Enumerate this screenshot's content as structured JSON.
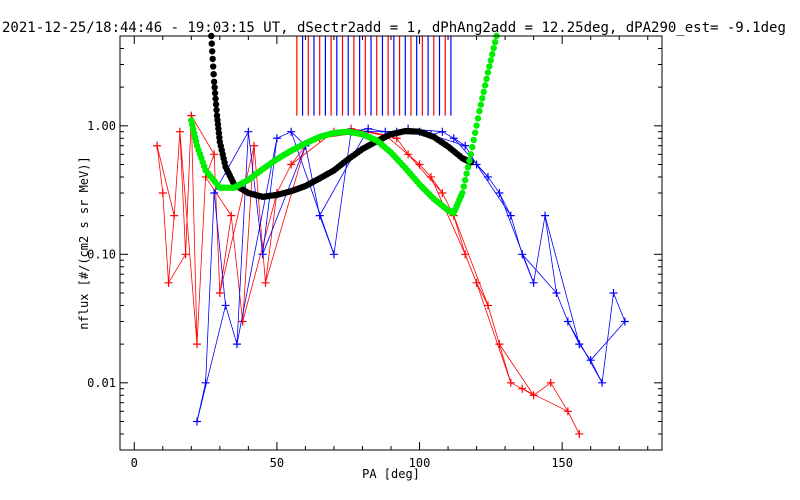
{
  "chart_data": {
    "type": "scatter",
    "title": "2021-12-25/18:44:46 - 19:03:15 UT, dSectr2add = 1, dPhAng2add = 12.25deg, dPA290_est=  -9.1deg",
    "xlabel": "PA [deg]",
    "ylabel": "nflux [#/(cm2 s sr MeV)]",
    "xlim": [
      -5,
      185
    ],
    "ylim": [
      0.003,
      5.0
    ],
    "yscale": "log",
    "x_ticks": [
      "0",
      "50",
      "100",
      "150"
    ],
    "x_tick_values": [
      0,
      50,
      100,
      150
    ],
    "y_ticks": [
      "0.01",
      "0.10",
      "1.00"
    ],
    "y_tick_values": [
      0.01,
      0.1,
      1.0
    ],
    "grid": false,
    "colors": {
      "red_series": "#ff0000",
      "blue_series": "#0000ff",
      "black_curve": "#000000",
      "green_curve": "#00ee00"
    },
    "series": [
      {
        "color": "red",
        "marker": "+",
        "x": [
          8,
          10,
          12,
          14,
          16,
          18,
          20,
          22,
          25,
          28,
          30,
          34,
          38,
          42,
          46,
          50,
          55,
          60,
          65,
          70,
          76,
          82,
          88,
          92,
          96,
          100,
          104,
          108,
          112,
          116,
          120,
          124,
          128,
          132,
          136,
          140,
          146,
          152,
          156
        ],
        "y": [
          0.7,
          0.3,
          0.06,
          0.2,
          0.9,
          0.1,
          1.2,
          0.02,
          0.4,
          0.6,
          0.05,
          0.2,
          0.03,
          0.7,
          0.06,
          0.3,
          0.5,
          0.7,
          0.8,
          0.9,
          0.95,
          0.9,
          0.85,
          0.8,
          0.6,
          0.5,
          0.4,
          0.3,
          0.2,
          0.1,
          0.06,
          0.04,
          0.02,
          0.01,
          0.009,
          0.008,
          0.01,
          0.006,
          0.004
        ]
      },
      {
        "color": "blue",
        "marker": "+",
        "x": [
          22,
          25,
          28,
          32,
          36,
          40,
          45,
          50,
          55,
          60,
          65,
          70,
          76,
          82,
          88,
          92,
          96,
          100,
          104,
          108,
          112,
          116,
          120,
          124,
          128,
          132,
          136,
          140,
          144,
          148,
          152,
          156,
          160,
          164,
          168,
          172
        ],
        "y": [
          0.005,
          0.01,
          0.3,
          0.04,
          0.02,
          0.9,
          0.1,
          0.8,
          0.9,
          0.7,
          0.2,
          0.1,
          0.9,
          0.95,
          0.9,
          0.9,
          0.95,
          0.9,
          0.85,
          0.9,
          0.8,
          0.7,
          0.5,
          0.4,
          0.3,
          0.2,
          0.1,
          0.06,
          0.2,
          0.05,
          0.03,
          0.02,
          0.015,
          0.01,
          0.05,
          0.03
        ]
      },
      {
        "color": "black",
        "marker": "dot",
        "x": [
          27,
          28,
          29,
          30,
          32,
          35,
          40,
          45,
          50,
          55,
          60,
          65,
          70,
          75,
          80,
          85,
          90,
          95,
          100,
          105,
          110,
          115,
          118
        ],
        "y": [
          5.0,
          2.2,
          1.2,
          0.75,
          0.48,
          0.35,
          0.3,
          0.28,
          0.29,
          0.31,
          0.34,
          0.39,
          0.45,
          0.55,
          0.66,
          0.76,
          0.86,
          0.91,
          0.9,
          0.82,
          0.69,
          0.56,
          0.52
        ]
      },
      {
        "color": "green",
        "marker": "dot",
        "x": [
          20,
          22,
          25,
          30,
          35,
          40,
          45,
          50,
          55,
          60,
          65,
          70,
          75,
          80,
          85,
          90,
          95,
          100,
          105,
          110,
          112,
          115,
          118,
          121,
          124,
          127
        ],
        "y": [
          1.1,
          0.7,
          0.45,
          0.33,
          0.33,
          0.38,
          0.46,
          0.55,
          0.64,
          0.73,
          0.82,
          0.88,
          0.9,
          0.86,
          0.77,
          0.62,
          0.47,
          0.35,
          0.27,
          0.22,
          0.21,
          0.3,
          0.6,
          1.3,
          2.6,
          5.0
        ]
      },
      {
        "color": "mixed",
        "marker": "vertical-line",
        "x": [
          57,
          59,
          61,
          63,
          65,
          67,
          69,
          71,
          73,
          75,
          77,
          79,
          81,
          83,
          85,
          87,
          89,
          91,
          93,
          95,
          97,
          99,
          101,
          103,
          105,
          107,
          109,
          111
        ],
        "y": [
          1.2,
          1.2,
          1.2,
          1.2,
          1.2,
          1.2,
          1.2,
          1.2,
          1.2,
          1.2,
          1.2,
          1.2,
          1.2,
          1.2,
          1.2,
          1.2,
          1.2,
          1.2,
          1.2,
          1.2,
          1.2,
          1.2,
          1.2,
          1.2,
          1.2,
          1.2,
          1.2,
          1.2
        ]
      }
    ]
  }
}
